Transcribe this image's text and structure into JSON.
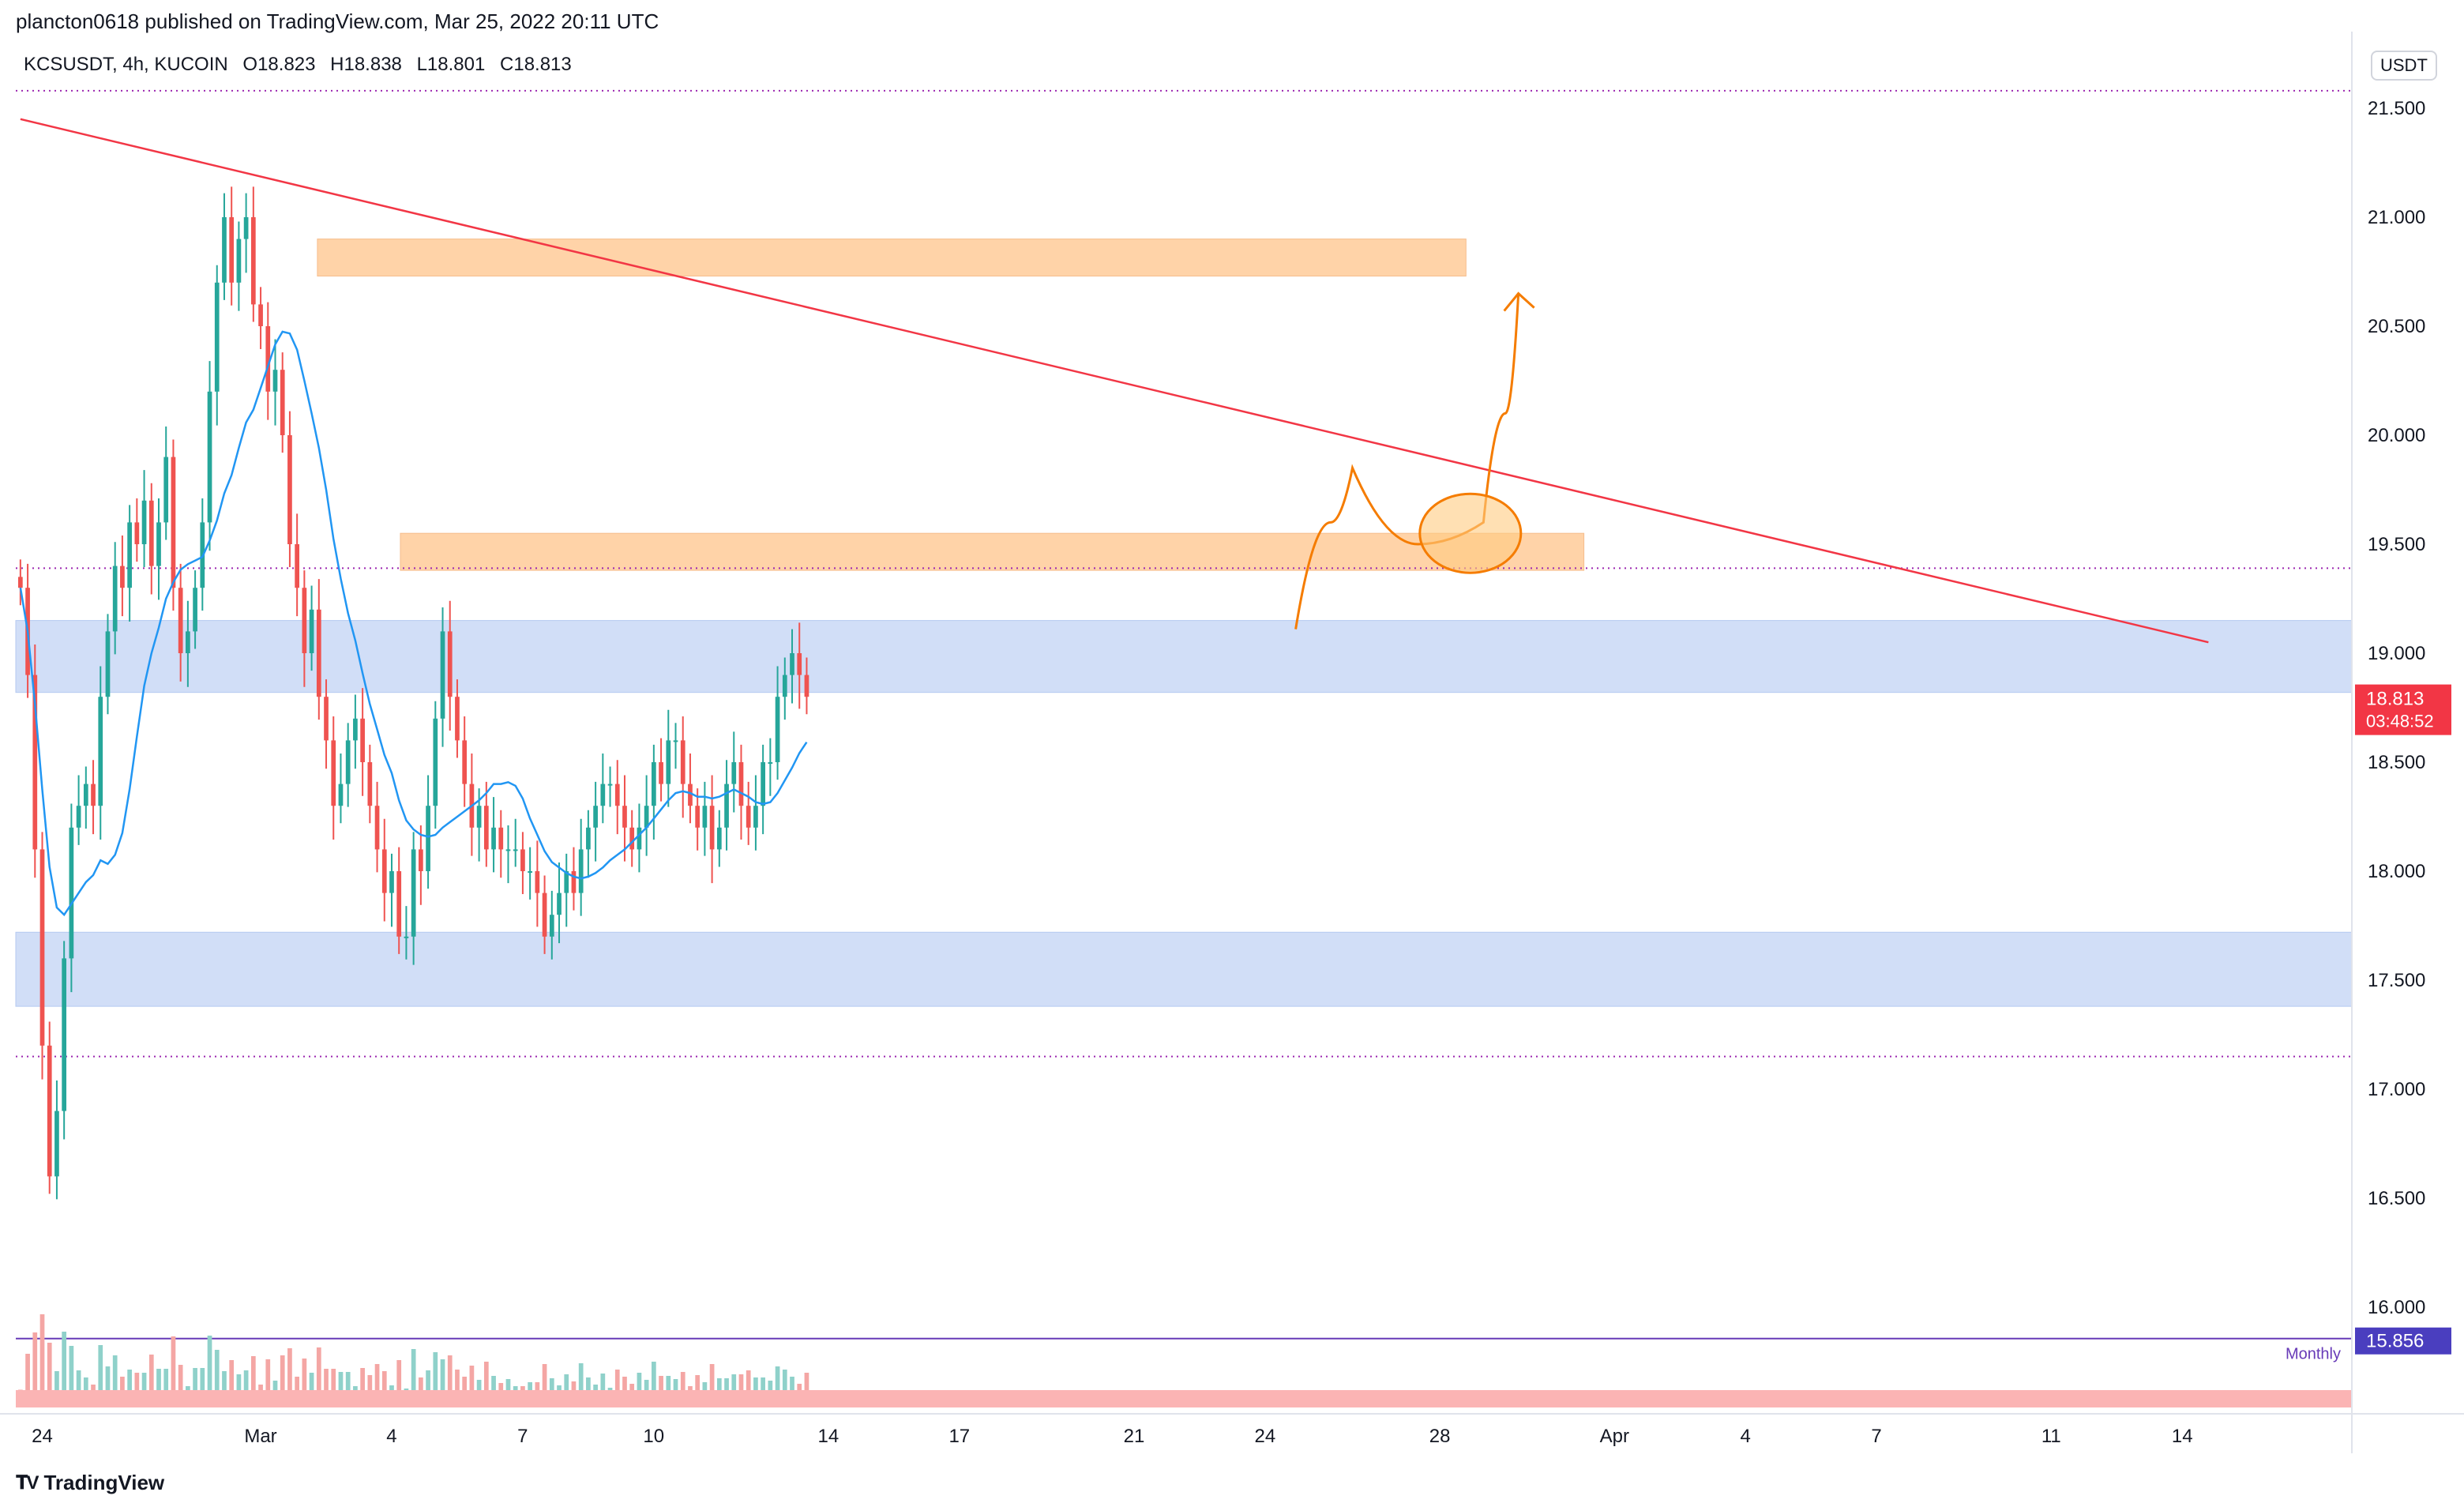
{
  "header": {
    "credit": "plancton0618 published on TradingView.com, Mar 25, 2022 20:11 UTC"
  },
  "symbol": {
    "pair": "KCSUSDT, 4h, KUCOIN",
    "open": "O18.823",
    "high": "H18.838",
    "low": "L18.801",
    "close": "C18.813"
  },
  "price_axis": {
    "currency": "USDT",
    "last_price_label": "18.813",
    "countdown_label": "03:48:52",
    "monthly_label": "Monthly",
    "monthly_value_label": "15.856"
  },
  "footer": {
    "brand": "TradingView"
  },
  "colors": {
    "up": "#26a69a",
    "down": "#ef5350",
    "ma": "#2196f3",
    "trendline": "#f23645",
    "resistance_zone": "#ffcc99",
    "support_zone": "#c9d9f6",
    "projection": "#f57c00",
    "monthly_line": "#673ab7",
    "dotted_level": "#9c27b0",
    "price_badge": "#f23645",
    "monthly_badge": "#4a3ebf"
  },
  "chart_data": {
    "type": "candlestick",
    "symbol": "KCSUSDT",
    "interval": "4h",
    "exchange": "KUCOIN",
    "x_tick_labels": [
      "24",
      "Mar",
      "4",
      "7",
      "10",
      "14",
      "17",
      "21",
      "24",
      "28",
      "Apr",
      "4",
      "7",
      "11",
      "14"
    ],
    "x_tick_days": [
      -5,
      0,
      3,
      6,
      9,
      13,
      16,
      20,
      23,
      27,
      31,
      34,
      37,
      41,
      44
    ],
    "y_ticks": [
      16.0,
      16.5,
      17.0,
      17.5,
      18.0,
      18.5,
      19.0,
      19.5,
      20.0,
      20.5,
      21.0,
      21.5
    ],
    "y_tick_labels": [
      "16.000",
      "16.500",
      "17.000",
      "17.500",
      "18.000",
      "18.500",
      "19.000",
      "19.500",
      "20.000",
      "20.500",
      "21.000",
      "21.500"
    ],
    "ylim": [
      15.6,
      21.75
    ],
    "close_series_start": -5.5,
    "close_series_step_days": 0.1667,
    "close": [
      19.3,
      18.9,
      18.1,
      17.2,
      16.6,
      16.9,
      17.6,
      18.2,
      18.3,
      18.4,
      18.3,
      18.8,
      19.1,
      19.4,
      19.3,
      19.6,
      19.5,
      19.7,
      19.4,
      19.6,
      19.9,
      19.3,
      19.0,
      19.1,
      19.3,
      19.6,
      20.2,
      20.7,
      21.0,
      20.7,
      20.9,
      21.0,
      20.6,
      20.5,
      20.2,
      20.3,
      20.0,
      19.5,
      19.3,
      19.0,
      19.2,
      18.8,
      18.6,
      18.3,
      18.4,
      18.6,
      18.7,
      18.5,
      18.3,
      18.1,
      17.9,
      18.0,
      17.7,
      17.7,
      18.1,
      18.0,
      18.3,
      18.7,
      19.1,
      18.8,
      18.6,
      18.4,
      18.2,
      18.3,
      18.1,
      18.2,
      18.1,
      18.1,
      18.1,
      18.0,
      18.0,
      17.9,
      17.7,
      17.8,
      17.9,
      18.0,
      17.9,
      18.1,
      18.2,
      18.3,
      18.4,
      18.4,
      18.3,
      18.2,
      18.1,
      18.2,
      18.3,
      18.5,
      18.4,
      18.6,
      18.6,
      18.4,
      18.3,
      18.2,
      18.3,
      18.1,
      18.2,
      18.4,
      18.5,
      18.3,
      18.2,
      18.3,
      18.5,
      18.5,
      18.8,
      18.9,
      19.0,
      18.9,
      18.8
    ],
    "moving_average_visible": true,
    "zones": [
      {
        "name": "resistance-upper",
        "from": 20.73,
        "to": 20.9,
        "x_start_day": 1.3,
        "x_end_day": 27.6
      },
      {
        "name": "resistance-lower",
        "from": 19.38,
        "to": 19.55,
        "x_start_day": 3.2,
        "x_end_day": 30.3
      },
      {
        "name": "support-upper",
        "from": 18.82,
        "to": 19.15,
        "x_start_day": null,
        "x_end_day": null
      },
      {
        "name": "support-lower",
        "from": 17.38,
        "to": 17.72,
        "x_start_day": null,
        "x_end_day": null
      }
    ],
    "trendline": {
      "x_start_day": -5.5,
      "y_start": 21.45,
      "x_end_day": 44.6,
      "y_end": 19.05
    },
    "dotted_levels": [
      21.58,
      19.39,
      17.15
    ],
    "monthly_level": 15.856,
    "last_price": 18.813,
    "projection_path": [
      {
        "x_day": 23.7,
        "y": 19.11
      },
      {
        "x_day": 24.5,
        "y": 19.6
      },
      {
        "x_day": 25.0,
        "y": 19.85
      },
      {
        "x_day": 26.5,
        "y": 19.5
      },
      {
        "x_day": 28.0,
        "y": 19.6
      },
      {
        "x_day": 28.5,
        "y": 20.1
      },
      {
        "x_day": 28.8,
        "y": 20.65
      }
    ],
    "projection_circle": {
      "x_day": 27.7,
      "y": 19.55
    },
    "grid": false,
    "legend": "none"
  }
}
